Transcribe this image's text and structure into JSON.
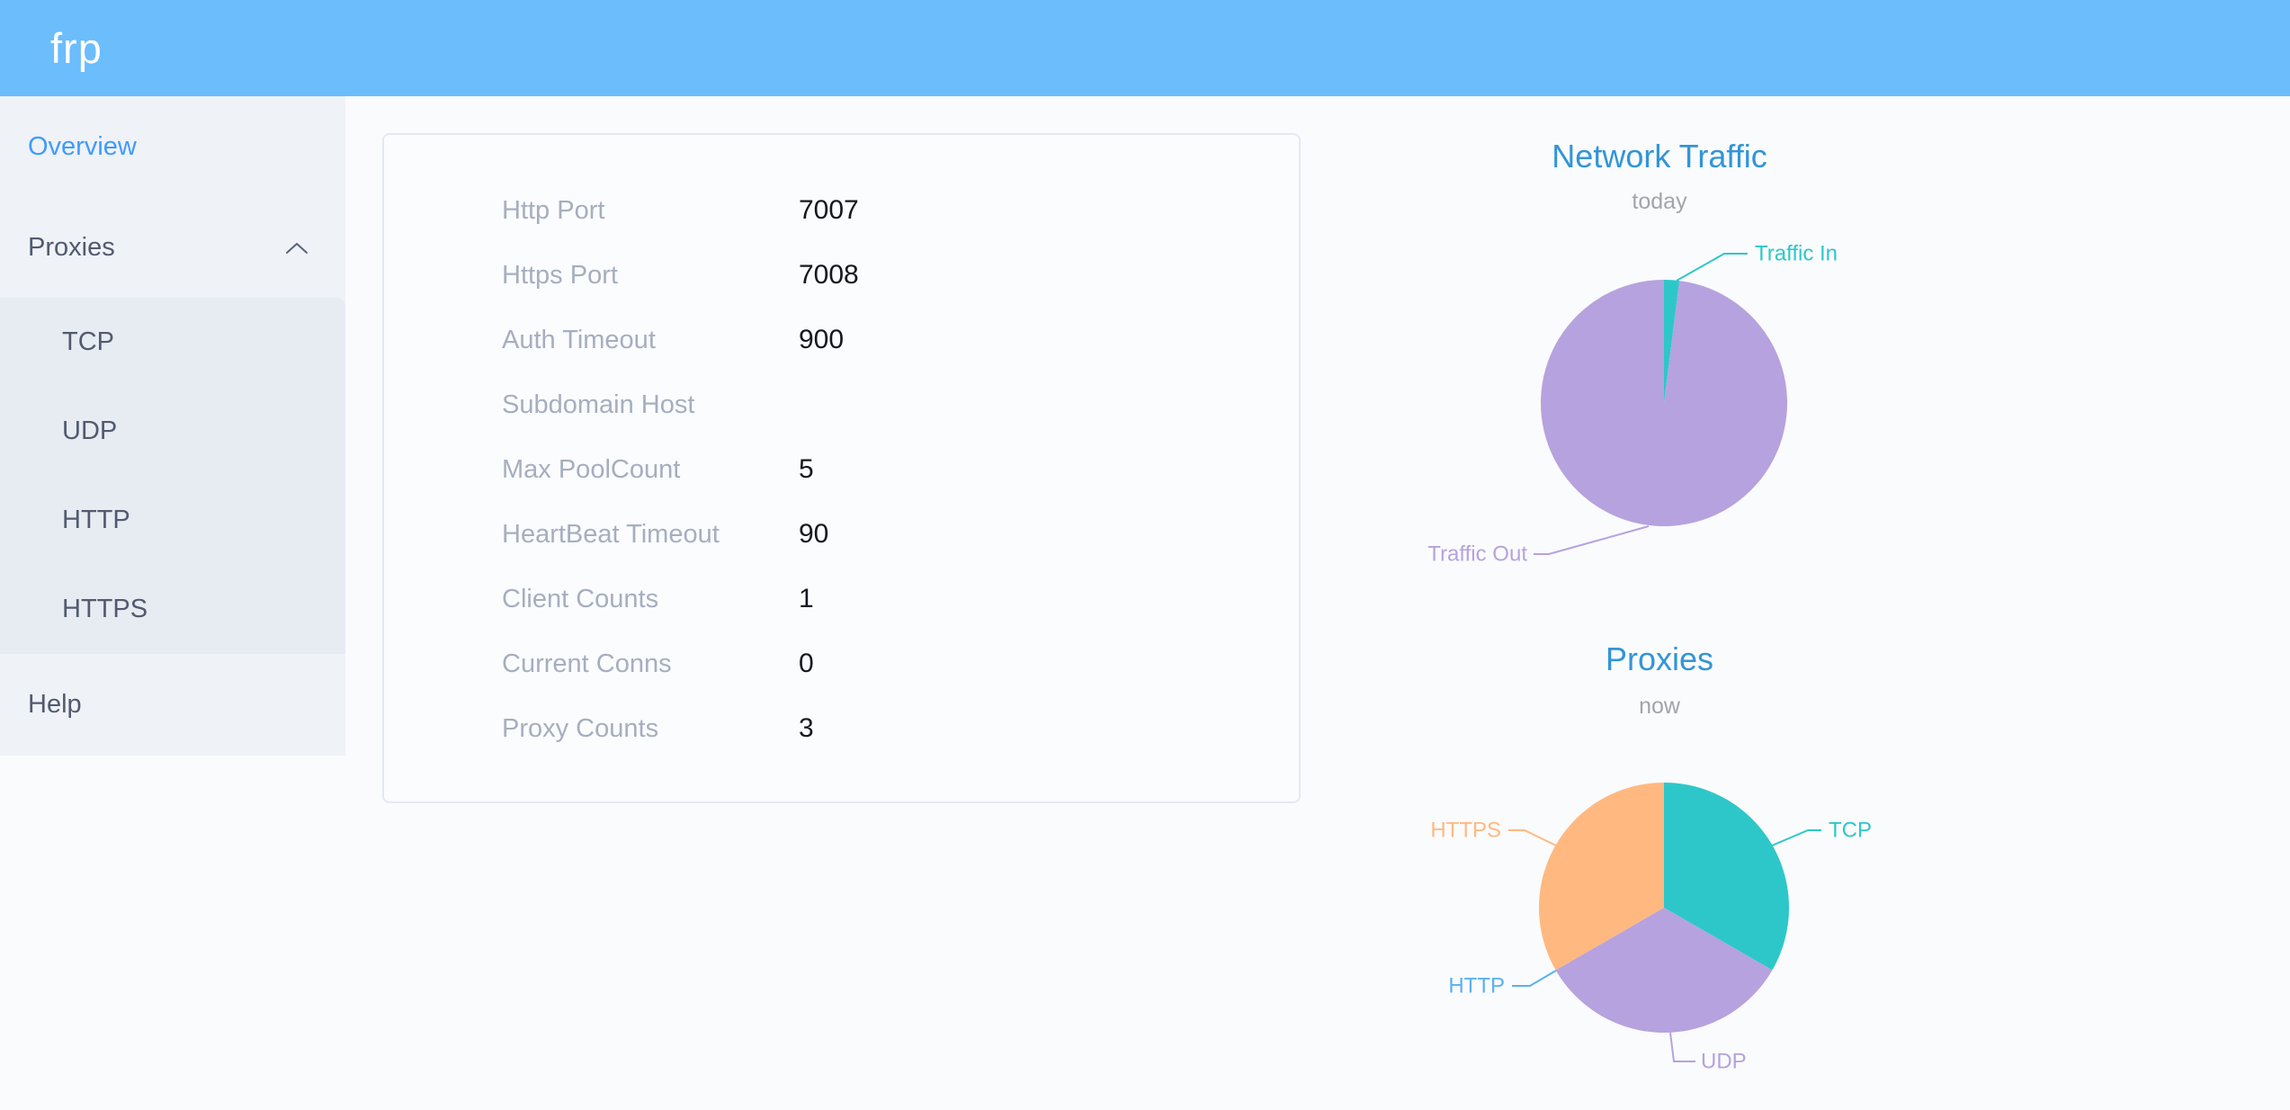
{
  "header": {
    "logo": "frp"
  },
  "sidebar": {
    "overview": {
      "label": "Overview"
    },
    "proxies": {
      "label": "Proxies",
      "expanded": true,
      "children": [
        "TCP",
        "UDP",
        "HTTP",
        "HTTPS"
      ]
    },
    "help": {
      "label": "Help"
    }
  },
  "overview_table": {
    "rows": [
      {
        "label": "Http Port",
        "value": "7007"
      },
      {
        "label": "Https Port",
        "value": "7008"
      },
      {
        "label": "Auth Timeout",
        "value": "900"
      },
      {
        "label": "Subdomain Host",
        "value": ""
      },
      {
        "label": "Max PoolCount",
        "value": "5"
      },
      {
        "label": "HeartBeat Timeout",
        "value": "90"
      },
      {
        "label": "Client Counts",
        "value": "1"
      },
      {
        "label": "Current Conns",
        "value": "0"
      },
      {
        "label": "Proxy Counts",
        "value": "3"
      }
    ]
  },
  "colors": {
    "header_bg": "#6bbdfc",
    "sidebar_active": "#3f9bfb",
    "chart_title": "#3295d6"
  },
  "chart_data": [
    {
      "type": "pie",
      "title": "Network Traffic",
      "subtitle": "today",
      "legend_position": "callout-labels",
      "value_unit": "percent (estimated from slice angles, no numbers shown)",
      "series": [
        {
          "name": "Traffic In",
          "value": 2,
          "color": "#2ec7c9"
        },
        {
          "name": "Traffic Out",
          "value": 98,
          "color": "#b6a2de"
        }
      ]
    },
    {
      "type": "pie",
      "title": "Proxies",
      "subtitle": "now",
      "legend_position": "callout-labels",
      "value_unit": "proxy count",
      "series": [
        {
          "name": "TCP",
          "value": 1,
          "color": "#2ec7c9"
        },
        {
          "name": "UDP",
          "value": 1,
          "color": "#b6a2de"
        },
        {
          "name": "HTTP",
          "value": 0,
          "color": "#5ab1ef"
        },
        {
          "name": "HTTPS",
          "value": 1,
          "color": "#ffb980"
        }
      ]
    }
  ]
}
